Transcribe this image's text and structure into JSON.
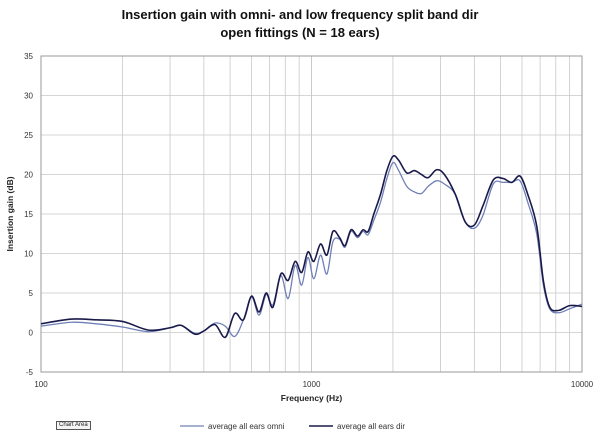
{
  "chart_data": {
    "type": "line",
    "title": "Insertion gain with omni- and low frequency split band dir",
    "subtitle": "open fittings (N = 18 ears)",
    "xlabel": "Frequency (Hz)",
    "ylabel": "Insertion gain (dB)",
    "xscale": "log",
    "xlim": [
      100,
      10000
    ],
    "ylim": [
      -5,
      35
    ],
    "x_tick_labels": [
      "100",
      "1000",
      "10000"
    ],
    "y_tick_labels": [
      "-5",
      "0",
      "5",
      "10",
      "15",
      "20",
      "25",
      "30",
      "35"
    ],
    "grid": true,
    "legend_position": "bottom",
    "series": [
      {
        "name": "average all ears omni",
        "color": "#7080b8",
        "points": [
          [
            100,
            0.8
          ],
          [
            130,
            1.3
          ],
          [
            160,
            1.1
          ],
          [
            200,
            0.7
          ],
          [
            250,
            0.1
          ],
          [
            300,
            0.6
          ],
          [
            330,
            0.9
          ],
          [
            370,
            -0.1
          ],
          [
            400,
            0.2
          ],
          [
            440,
            1.2
          ],
          [
            480,
            0.8
          ],
          [
            520,
            -0.5
          ],
          [
            560,
            1.6
          ],
          [
            600,
            4.5
          ],
          [
            640,
            2.2
          ],
          [
            680,
            4.8
          ],
          [
            720,
            3.5
          ],
          [
            770,
            7.2
          ],
          [
            820,
            4.3
          ],
          [
            870,
            8.5
          ],
          [
            920,
            6.0
          ],
          [
            970,
            9.5
          ],
          [
            1020,
            6.8
          ],
          [
            1080,
            9.8
          ],
          [
            1140,
            7.4
          ],
          [
            1200,
            11.5
          ],
          [
            1270,
            11.8
          ],
          [
            1330,
            10.8
          ],
          [
            1400,
            12.8
          ],
          [
            1480,
            12.0
          ],
          [
            1550,
            12.8
          ],
          [
            1620,
            12.4
          ],
          [
            1700,
            14.2
          ],
          [
            1800,
            16.5
          ],
          [
            1900,
            19.5
          ],
          [
            2000,
            21.5
          ],
          [
            2100,
            20.5
          ],
          [
            2250,
            18.5
          ],
          [
            2400,
            17.8
          ],
          [
            2550,
            17.6
          ],
          [
            2700,
            18.5
          ],
          [
            2900,
            19.2
          ],
          [
            3100,
            18.8
          ],
          [
            3400,
            17.5
          ],
          [
            3700,
            14.0
          ],
          [
            4000,
            13.2
          ],
          [
            4300,
            14.8
          ],
          [
            4700,
            18.8
          ],
          [
            5100,
            19.0
          ],
          [
            5500,
            19.0
          ],
          [
            5900,
            19.2
          ],
          [
            6300,
            16.5
          ],
          [
            6800,
            12.5
          ],
          [
            7200,
            6.0
          ],
          [
            7600,
            3.0
          ],
          [
            8200,
            2.5
          ],
          [
            9000,
            3.0
          ],
          [
            10000,
            3.6
          ]
        ]
      },
      {
        "name": "average all ears dir",
        "color": "#1a1a4a",
        "points": [
          [
            100,
            1.1
          ],
          [
            130,
            1.7
          ],
          [
            160,
            1.6
          ],
          [
            200,
            1.4
          ],
          [
            250,
            0.3
          ],
          [
            300,
            0.6
          ],
          [
            330,
            0.9
          ],
          [
            370,
            -0.2
          ],
          [
            400,
            0.2
          ],
          [
            440,
            1.0
          ],
          [
            480,
            -0.6
          ],
          [
            520,
            2.4
          ],
          [
            560,
            1.6
          ],
          [
            600,
            4.6
          ],
          [
            640,
            2.6
          ],
          [
            680,
            5.0
          ],
          [
            720,
            3.2
          ],
          [
            770,
            7.4
          ],
          [
            820,
            6.6
          ],
          [
            870,
            9.0
          ],
          [
            920,
            7.6
          ],
          [
            970,
            10.2
          ],
          [
            1020,
            9.0
          ],
          [
            1080,
            11.2
          ],
          [
            1140,
            9.8
          ],
          [
            1200,
            12.8
          ],
          [
            1270,
            12.0
          ],
          [
            1330,
            11.0
          ],
          [
            1400,
            13.0
          ],
          [
            1480,
            12.2
          ],
          [
            1550,
            13.0
          ],
          [
            1620,
            12.8
          ],
          [
            1700,
            15.0
          ],
          [
            1800,
            17.5
          ],
          [
            1900,
            20.5
          ],
          [
            2000,
            22.3
          ],
          [
            2100,
            21.8
          ],
          [
            2250,
            20.2
          ],
          [
            2400,
            20.5
          ],
          [
            2550,
            20.0
          ],
          [
            2700,
            19.6
          ],
          [
            2900,
            20.6
          ],
          [
            3100,
            20.0
          ],
          [
            3400,
            17.5
          ],
          [
            3700,
            14.0
          ],
          [
            4000,
            13.6
          ],
          [
            4300,
            16.0
          ],
          [
            4700,
            19.3
          ],
          [
            5100,
            19.5
          ],
          [
            5500,
            19.0
          ],
          [
            5900,
            19.8
          ],
          [
            6300,
            17.5
          ],
          [
            6800,
            13.5
          ],
          [
            7200,
            6.5
          ],
          [
            7600,
            3.2
          ],
          [
            8200,
            2.8
          ],
          [
            9000,
            3.4
          ],
          [
            10000,
            3.3
          ]
        ]
      }
    ]
  },
  "chart_area_tag": "Chart Area"
}
